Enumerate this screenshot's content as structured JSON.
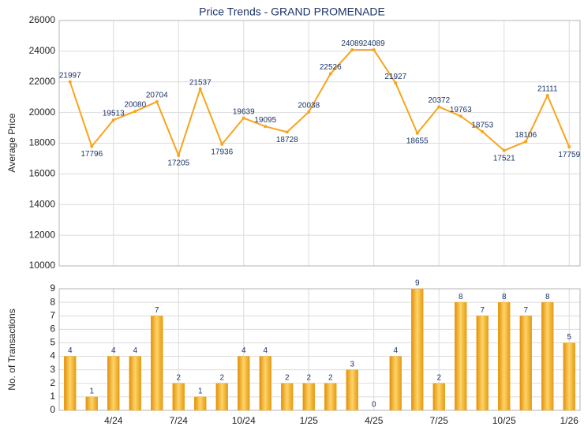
{
  "chart_data": [
    {
      "type": "line",
      "title": "Price Trends - GRAND PROMENADE",
      "y_label": "Average Price",
      "color": "#f7a51c",
      "values": [
        21997,
        17796,
        19513,
        20080,
        20704,
        17205,
        21537,
        17936,
        19639,
        19095,
        18728,
        20038,
        22526,
        24089,
        24089,
        21927,
        18655,
        20372,
        19763,
        18753,
        17521,
        18106,
        21111,
        17759
      ],
      "ylim": [
        10000,
        26000
      ],
      "yticks": [
        10000,
        12000,
        14000,
        16000,
        18000,
        20000,
        22000,
        24000,
        26000
      ],
      "grid": true
    },
    {
      "type": "bar",
      "y_label": "No. of Transactions",
      "color": "#f2a81e",
      "categories": [
        null,
        null,
        "4/24",
        null,
        null,
        "7/24",
        null,
        null,
        "10/24",
        null,
        null,
        "1/25",
        null,
        null,
        "4/25",
        null,
        null,
        "7/25",
        null,
        null,
        "10/25",
        null,
        null,
        "1/26"
      ],
      "values": [
        4,
        1,
        4,
        4,
        7,
        2,
        1,
        2,
        4,
        4,
        2,
        2,
        2,
        3,
        0,
        4,
        9,
        2,
        8,
        7,
        8,
        7,
        8,
        5
      ],
      "ylim": [
        0,
        9
      ],
      "yticks": [
        0,
        1,
        2,
        3,
        4,
        5,
        6,
        7,
        8,
        9
      ],
      "grid": true
    }
  ]
}
